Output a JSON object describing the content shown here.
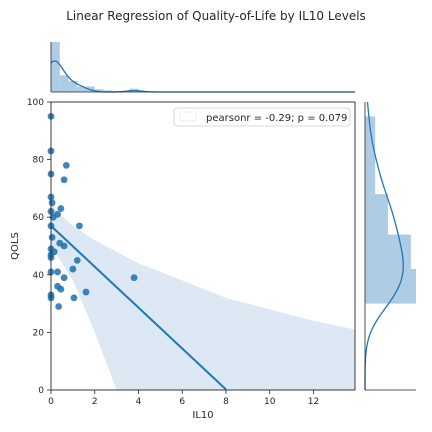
{
  "chart_data": {
    "type": "scatter",
    "title": "Linear Regression of Quality-of-Life by IL10 Levels",
    "xlabel": "IL10",
    "ylabel": "QOLS",
    "xlim": [
      0,
      13.9
    ],
    "ylim": [
      0,
      100
    ],
    "xticks": [
      "0",
      "2",
      "4",
      "6",
      "8",
      "10",
      "12"
    ],
    "yticks": [
      "0",
      "20",
      "40",
      "60",
      "80",
      "100"
    ],
    "annotation": "pearsonr = -0.29; p = 0.079",
    "points": [
      {
        "x": 0.0,
        "y": 95
      },
      {
        "x": 0.0,
        "y": 83
      },
      {
        "x": 0.0,
        "y": 75
      },
      {
        "x": 0.0,
        "y": 67
      },
      {
        "x": 0.05,
        "y": 65
      },
      {
        "x": 0.0,
        "y": 62
      },
      {
        "x": 0.1,
        "y": 60
      },
      {
        "x": 0.0,
        "y": 57
      },
      {
        "x": 0.05,
        "y": 53
      },
      {
        "x": 0.0,
        "y": 49
      },
      {
        "x": 0.0,
        "y": 47
      },
      {
        "x": 0.0,
        "y": 46
      },
      {
        "x": 0.0,
        "y": 41
      },
      {
        "x": 0.0,
        "y": 33
      },
      {
        "x": 0.0,
        "y": 32
      },
      {
        "x": 0.15,
        "y": 48
      },
      {
        "x": 0.3,
        "y": 61
      },
      {
        "x": 0.45,
        "y": 63
      },
      {
        "x": 0.6,
        "y": 73
      },
      {
        "x": 0.7,
        "y": 78
      },
      {
        "x": 0.4,
        "y": 51
      },
      {
        "x": 0.6,
        "y": 50
      },
      {
        "x": 0.3,
        "y": 41
      },
      {
        "x": 0.6,
        "y": 39
      },
      {
        "x": 0.3,
        "y": 36
      },
      {
        "x": 0.45,
        "y": 35
      },
      {
        "x": 0.35,
        "y": 29
      },
      {
        "x": 1.0,
        "y": 42
      },
      {
        "x": 1.2,
        "y": 45
      },
      {
        "x": 1.3,
        "y": 57
      },
      {
        "x": 1.05,
        "y": 32
      },
      {
        "x": 1.6,
        "y": 34
      },
      {
        "x": 3.8,
        "y": 39
      }
    ],
    "regression": {
      "intercept": 57,
      "slope": -7.1,
      "xmax": 8.0
    },
    "confidence_band": {
      "upper": [
        [
          0,
          64
        ],
        [
          1,
          57
        ],
        [
          2,
          52
        ],
        [
          3,
          48
        ],
        [
          4,
          44
        ],
        [
          6,
          38
        ],
        [
          8,
          32
        ],
        [
          10,
          28
        ],
        [
          12,
          24
        ],
        [
          13.9,
          21
        ]
      ],
      "lower": [
        [
          0,
          50
        ],
        [
          1,
          38
        ],
        [
          2,
          20
        ],
        [
          3,
          0
        ]
      ]
    },
    "colors": {
      "points": "#1f6fad",
      "line": "#1f77b4",
      "band": "#c9dcee",
      "hist": "#9bbfde"
    },
    "x_marginal": {
      "bin_width": 0.4,
      "counts": [
        9,
        3,
        2,
        1,
        1,
        0.5,
        0.3,
        0.2,
        0.1,
        0.6,
        0.2
      ]
    },
    "y_marginal": {
      "bins": [
        {
          "y0": 30,
          "y1": 42,
          "value": 1.0
        },
        {
          "y0": 42,
          "y1": 54,
          "value": 0.9
        },
        {
          "y0": 54,
          "y1": 68,
          "value": 0.45
        },
        {
          "y0": 68,
          "y1": 95,
          "value": 0.2
        }
      ]
    },
    "grid": false,
    "legend_placement": "upper right"
  }
}
